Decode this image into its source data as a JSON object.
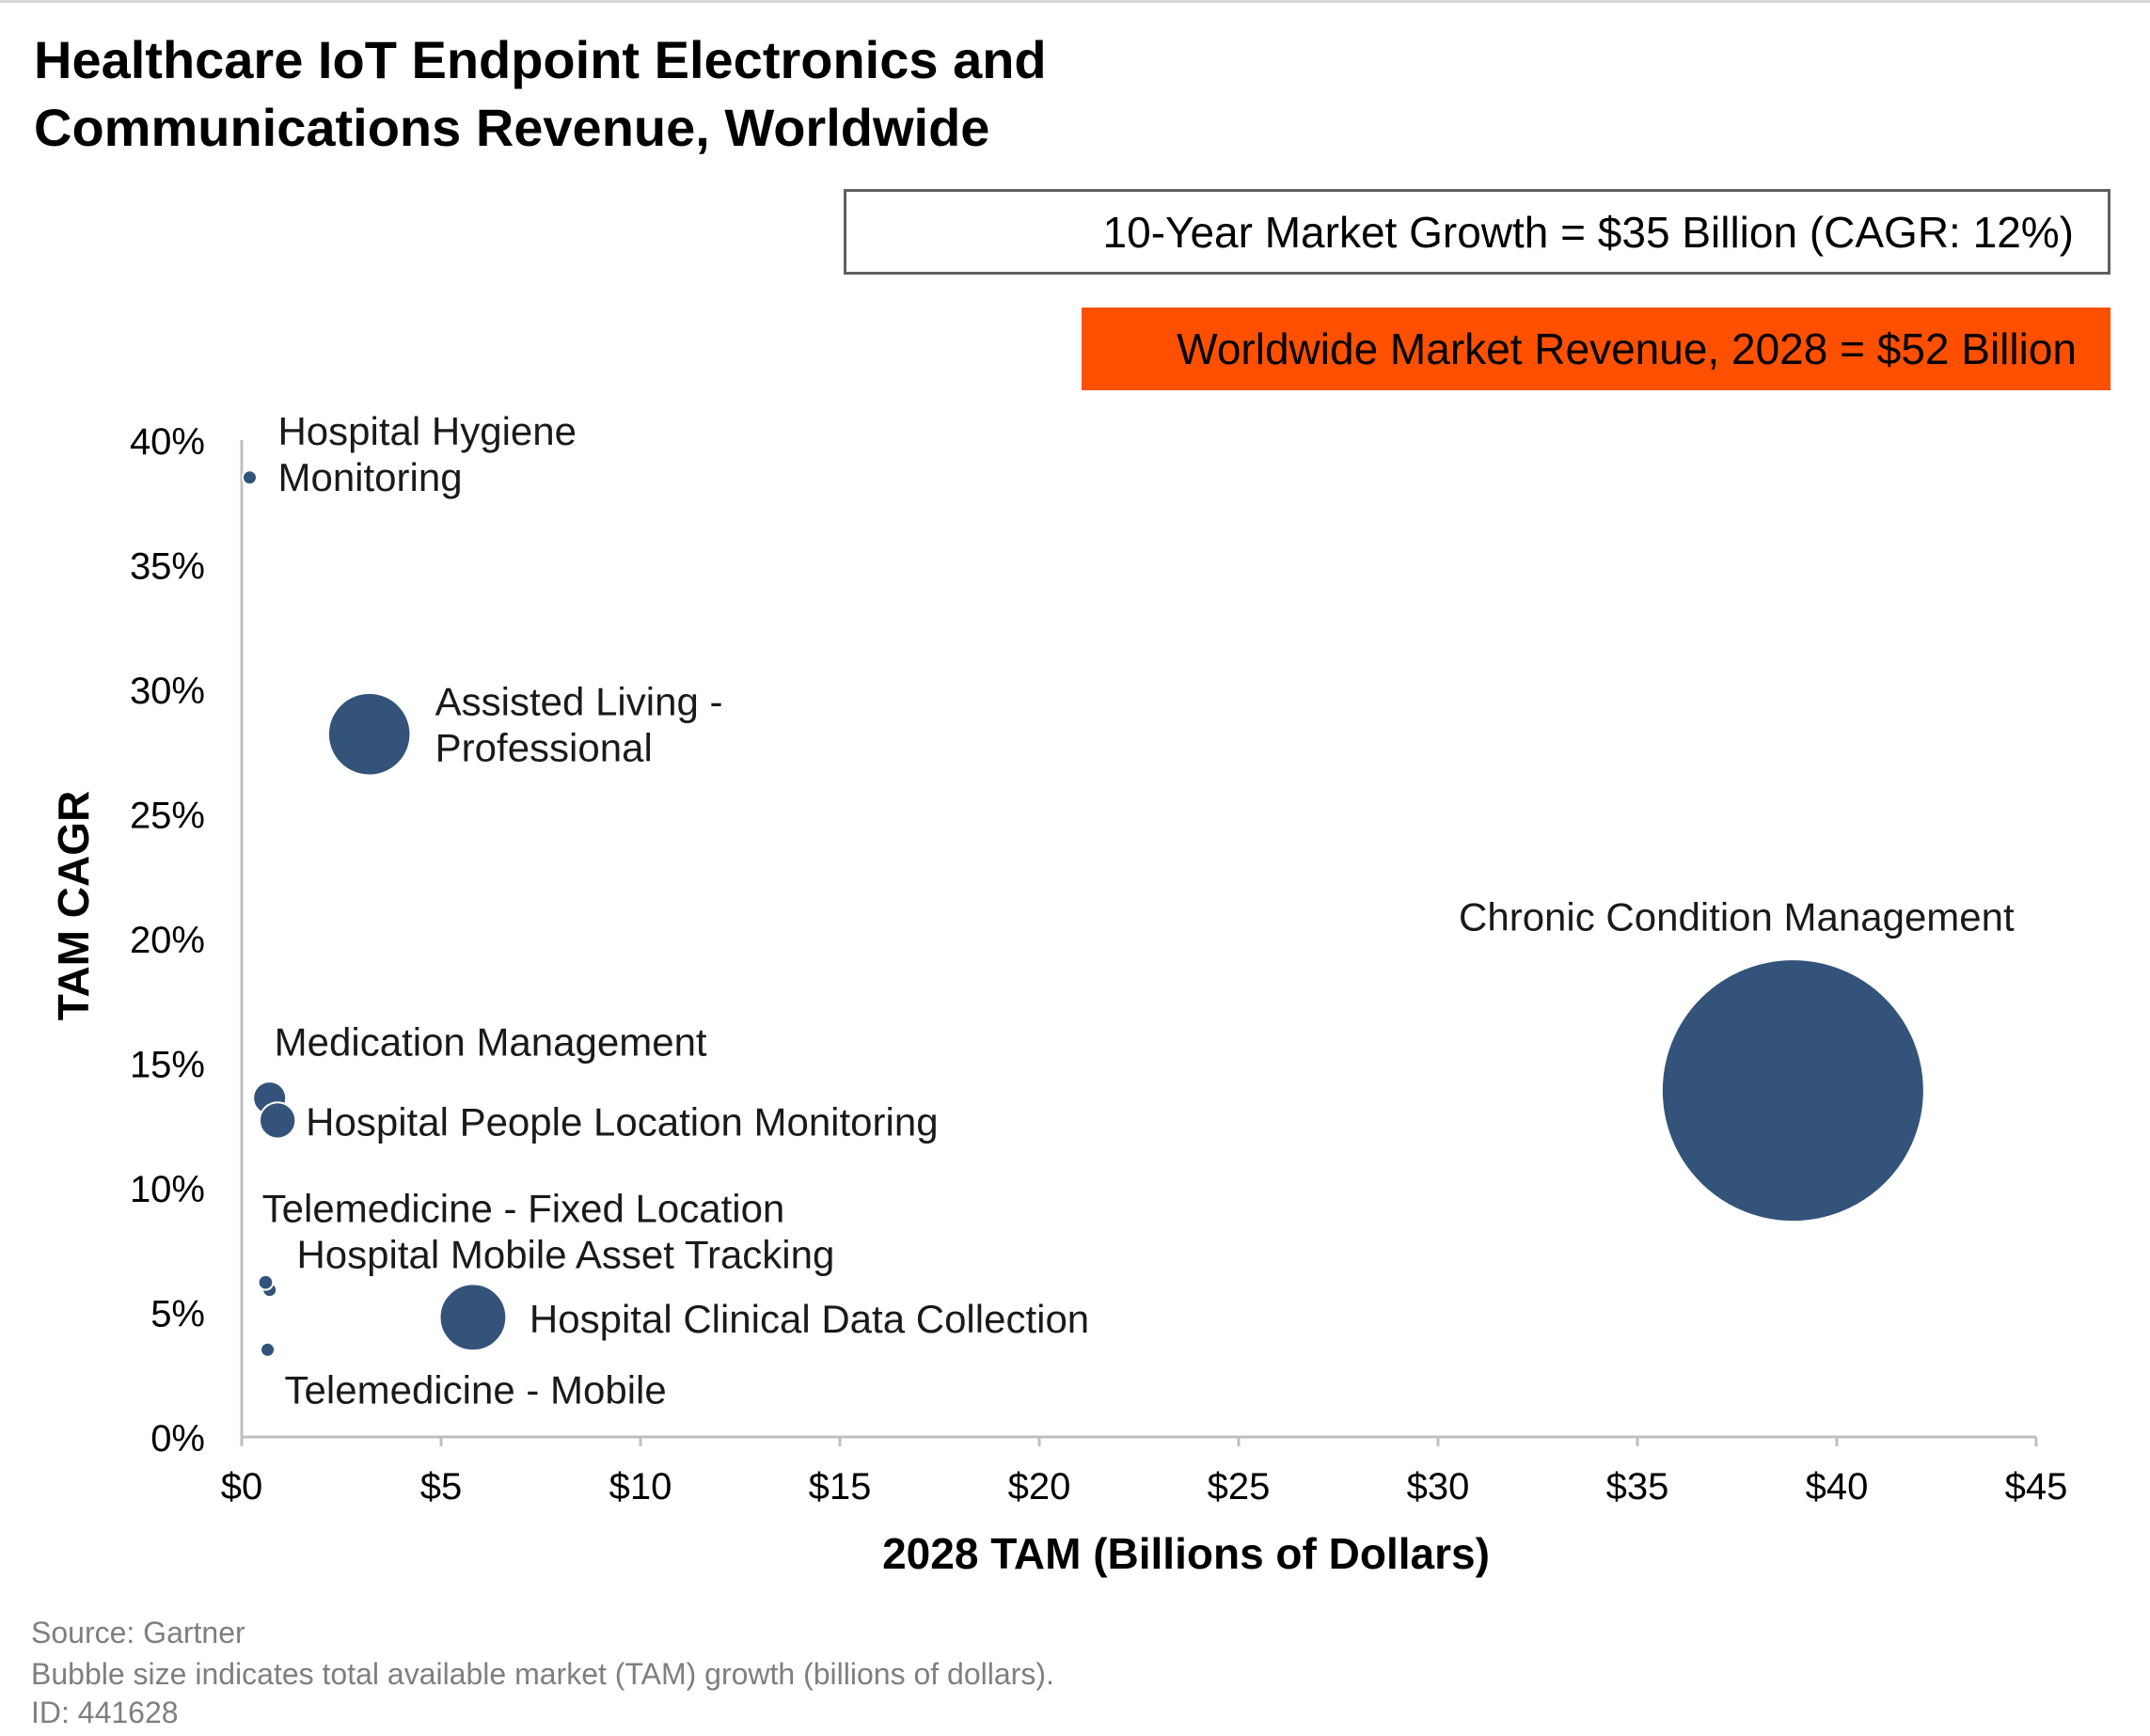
{
  "title_lines": [
    "Healthcare IoT Endpoint Electronics and",
    "Communications Revenue, Worldwide"
  ],
  "callouts": {
    "growth": "10-Year Market Growth = $35 Billion (CAGR: 12%)",
    "revenue": "Worldwide Market Revenue, 2028 = $52 Billion",
    "revenue_color": "#fe5000"
  },
  "chart_data": {
    "type": "scatter",
    "subtype": "bubble",
    "xlabel": "2028 TAM (Billions of Dollars)",
    "ylabel": "TAM CAGR",
    "xlim": [
      0,
      45
    ],
    "ylim": [
      0,
      40
    ],
    "x_tick_labels": [
      "$0",
      "$5",
      "$10",
      "$15",
      "$20",
      "$25",
      "$30",
      "$35",
      "$40",
      "$45"
    ],
    "y_tick_labels": [
      "0%",
      "5%",
      "10%",
      "15%",
      "20%",
      "25%",
      "30%",
      "35%",
      "40%"
    ],
    "grid": false,
    "bubble_color": "#34537a",
    "points": [
      {
        "label": "Hospital Hygiene Monitoring",
        "label_lines": [
          "Hospital Hygiene",
          "Monitoring"
        ],
        "x": 0.2,
        "y": 38.5,
        "size": 0.03
      },
      {
        "label": "Assisted Living - Professional",
        "label_lines": [
          "Assisted Living -",
          "Professional"
        ],
        "x": 3.2,
        "y": 28.2,
        "size": 3.2
      },
      {
        "label": "Chronic Condition Management",
        "label_lines": [
          "Chronic Condition Management"
        ],
        "x": 38.9,
        "y": 13.9,
        "size": 32
      },
      {
        "label": "Medication Management",
        "label_lines": [
          "Medication Management"
        ],
        "x": 0.7,
        "y": 13.6,
        "size": 0.5
      },
      {
        "label": "Hospital People Location Monitoring",
        "label_lines": [
          "Hospital People Location Monitoring"
        ],
        "x": 0.9,
        "y": 12.7,
        "size": 0.6
      },
      {
        "label": "Telemedicine - Fixed Location",
        "label_lines": [
          "Telemedicine - Fixed Location"
        ],
        "x": 0.7,
        "y": 5.9,
        "size": 0.08
      },
      {
        "label": "Hospital Mobile Asset Tracking",
        "label_lines": [
          "Hospital Mobile Asset Tracking"
        ],
        "x": 0.6,
        "y": 6.2,
        "size": 0.1
      },
      {
        "label": "Hospital Clinical Data Collection",
        "label_lines": [
          "Hospital Clinical Data Collection"
        ],
        "x": 5.8,
        "y": 4.8,
        "size": 2.1
      },
      {
        "label": "Telemedicine - Mobile",
        "label_lines": [
          "Telemedicine - Mobile"
        ],
        "x": 0.65,
        "y": 3.5,
        "size": 0.05
      }
    ]
  },
  "footer": {
    "source": "Source: Gartner",
    "note": "Bubble size indicates total available market (TAM) growth (billions of dollars).",
    "id": "ID: 441628"
  }
}
